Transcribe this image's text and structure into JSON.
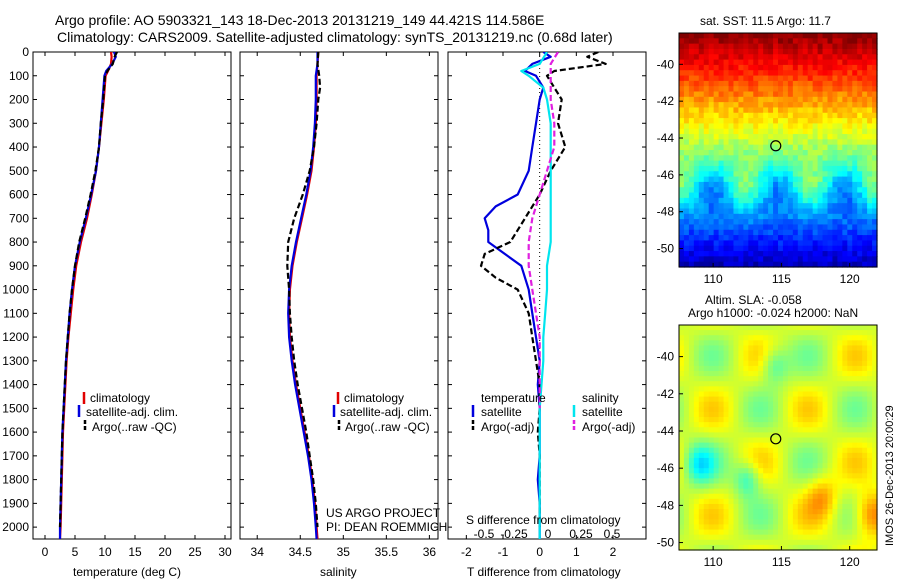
{
  "header": {
    "title_line1": "Argo profile: AO 5903321_143 18-Dec-2013 20131219_149 44.421S 114.586E",
    "title_line2": "Climatology: CARS2009. Satellite-adjusted climatology: synTS_20131219.nc (0.68d later)"
  },
  "credits": {
    "project": "US ARGO PROJECT",
    "pi": "PI: DEAN ROEMMICH",
    "stamp": "IMOS 26-Dec-2013 20:00:29"
  },
  "colors": {
    "climatology": "#e00000",
    "satellite": "#0000dd",
    "argo": "#000000",
    "sat_salinity": "#00e5ee",
    "argo_salinity_adj": "#e020e0"
  },
  "chart_data": [
    {
      "type": "line",
      "name": "temperature-profile",
      "xlabel": "temperature (deg C)",
      "xticks": [
        0,
        5,
        10,
        15,
        20,
        25,
        30
      ],
      "xlim": [
        -2,
        31
      ],
      "ylim": [
        0,
        2050
      ],
      "yticks": [
        0,
        100,
        200,
        300,
        400,
        500,
        600,
        700,
        800,
        900,
        1000,
        1100,
        1200,
        1300,
        1400,
        1500,
        1600,
        1700,
        1800,
        1900,
        2000
      ],
      "legend": [
        "climatology",
        "satellite-adj. clim.",
        "Argo(..raw -QC)"
      ],
      "series": [
        {
          "name": "climatology",
          "color": "#e00000",
          "dash": "",
          "depth": [
            0,
            20,
            50,
            80,
            100,
            200,
            300,
            400,
            500,
            600,
            700,
            800,
            900,
            1000,
            1100,
            1200,
            1300,
            1400,
            1500,
            1600,
            1700,
            1800,
            1900,
            2000,
            2050
          ],
          "values": [
            11.0,
            11.1,
            11.0,
            10.5,
            10.1,
            9.8,
            9.4,
            9.0,
            8.5,
            7.8,
            7.0,
            6.0,
            5.2,
            4.7,
            4.3,
            3.9,
            3.6,
            3.4,
            3.2,
            3.0,
            2.9,
            2.8,
            2.7,
            2.6,
            2.5
          ]
        },
        {
          "name": "satellite-adj. clim.",
          "color": "#0000dd",
          "dash": "",
          "depth": [
            0,
            20,
            50,
            80,
            100,
            200,
            300,
            400,
            500,
            600,
            700,
            800,
            900,
            1000,
            1100,
            1200,
            1300,
            1400,
            1500,
            1600,
            1700,
            1800,
            1900,
            2000,
            2050
          ],
          "values": [
            11.5,
            11.8,
            11.2,
            10.2,
            9.9,
            9.6,
            9.3,
            9.0,
            8.5,
            7.7,
            6.8,
            5.8,
            5.0,
            4.5,
            4.1,
            3.8,
            3.5,
            3.3,
            3.1,
            2.9,
            2.8,
            2.7,
            2.6,
            2.5,
            2.5
          ]
        },
        {
          "name": "Argo(..raw -QC)",
          "color": "#000000",
          "dash": "6,3",
          "depth": [
            0,
            20,
            50,
            80,
            100,
            200,
            300,
            400,
            500,
            600,
            700,
            800,
            900,
            1000,
            1100,
            1200,
            1300,
            1400,
            1500,
            1600,
            1700,
            1800,
            1900,
            2000
          ],
          "values": [
            12.0,
            11.6,
            11.3,
            10.4,
            10.0,
            9.7,
            9.3,
            9.0,
            8.4,
            7.6,
            6.7,
            5.7,
            5.0,
            4.5,
            4.1,
            3.8,
            3.5,
            3.3,
            3.1,
            2.9,
            2.8,
            2.7,
            2.6,
            2.5
          ]
        }
      ]
    },
    {
      "type": "line",
      "name": "salinity-profile",
      "xlabel": "salinity",
      "xticks": [
        34,
        34.5,
        35,
        35.5,
        36
      ],
      "xlim": [
        33.8,
        36.1
      ],
      "ylim": [
        0,
        2050
      ],
      "legend": [
        "climatology",
        "satellite-adj. clim.",
        "Argo(..raw -QC)"
      ],
      "series": [
        {
          "name": "climatology",
          "color": "#e00000",
          "dash": "",
          "depth": [
            0,
            50,
            100,
            200,
            300,
            400,
            500,
            600,
            700,
            800,
            900,
            1000,
            1100,
            1200,
            1300,
            1400,
            1500,
            1600,
            1700,
            1800,
            1900,
            2000,
            2050
          ],
          "values": [
            34.71,
            34.7,
            34.69,
            34.69,
            34.68,
            34.66,
            34.63,
            34.58,
            34.52,
            34.46,
            34.41,
            34.38,
            34.37,
            34.38,
            34.41,
            34.45,
            34.5,
            34.55,
            34.6,
            34.64,
            34.67,
            34.69,
            34.7
          ]
        },
        {
          "name": "satellite-adj. clim.",
          "color": "#0000dd",
          "dash": "",
          "depth": [
            0,
            50,
            100,
            200,
            300,
            400,
            500,
            600,
            700,
            800,
            900,
            1000,
            1100,
            1200,
            1300,
            1400,
            1500,
            1600,
            1700,
            1800,
            1900,
            2000,
            2050
          ],
          "values": [
            34.7,
            34.7,
            34.68,
            34.68,
            34.67,
            34.65,
            34.62,
            34.57,
            34.51,
            34.45,
            34.4,
            34.37,
            34.36,
            34.37,
            34.4,
            34.44,
            34.49,
            34.54,
            34.59,
            34.63,
            34.66,
            34.68,
            34.69
          ]
        },
        {
          "name": "Argo(..raw -QC)",
          "color": "#000000",
          "dash": "6,3",
          "depth": [
            0,
            50,
            100,
            150,
            200,
            300,
            400,
            500,
            600,
            700,
            800,
            900,
            1000,
            1100,
            1200,
            1300,
            1400,
            1500,
            1600,
            1700,
            1800,
            1900,
            2000
          ],
          "values": [
            34.71,
            34.7,
            34.72,
            34.73,
            34.71,
            34.69,
            34.66,
            34.61,
            34.53,
            34.43,
            34.36,
            34.35,
            34.37,
            34.38,
            34.4,
            34.43,
            34.47,
            34.52,
            34.57,
            34.61,
            34.65,
            34.68,
            34.7
          ]
        }
      ]
    },
    {
      "type": "line",
      "name": "difference-profile",
      "xlabel": "T difference from climatology",
      "xticks": [
        -2,
        -1,
        0,
        1,
        2
      ],
      "xlim": [
        -2.5,
        2.9
      ],
      "top_axis_label": "S difference from climatology",
      "top_ticks": [
        "-0.5",
        "-0.25",
        "0",
        "0.25",
        "0.5"
      ],
      "legend": {
        "temperature": "temperature",
        "salinity": "salinity",
        "t_sat": "satellite",
        "t_argo": "Argo(-adj)",
        "s_sat": "satellite",
        "s_argo": "Argo(-adj)"
      },
      "series": [
        {
          "name": "satellite",
          "color": "#0000dd",
          "dash": "",
          "depth": [
            0,
            20,
            50,
            80,
            100,
            150,
            200,
            300,
            400,
            500,
            600,
            650,
            700,
            750,
            800,
            900,
            1000,
            1100,
            1200,
            1300,
            1400,
            1500,
            1600,
            1700,
            1800,
            1900,
            2000,
            2050
          ],
          "values": [
            0.1,
            0.3,
            -0.2,
            -0.4,
            -0.1,
            0.1,
            0.0,
            -0.1,
            -0.2,
            -0.3,
            -0.6,
            -1.2,
            -1.5,
            -1.4,
            -1.4,
            -0.5,
            -0.3,
            -0.2,
            -0.1,
            0.0,
            -0.05,
            0.0,
            0.0,
            0.0,
            -0.05,
            0.0,
            0.0,
            0.0
          ]
        },
        {
          "name": "Argo(-adj)",
          "color": "#000000",
          "dash": "6,3",
          "depth": [
            0,
            20,
            50,
            80,
            100,
            150,
            200,
            300,
            400,
            500,
            600,
            700,
            800,
            850,
            900,
            950,
            1000,
            1100,
            1200,
            1300,
            1400,
            1500,
            1600,
            1700,
            1800,
            1900,
            2000
          ],
          "values": [
            1.6,
            1.3,
            1.8,
            0.4,
            0.2,
            0.4,
            0.6,
            0.5,
            0.7,
            0.3,
            0.0,
            -0.4,
            -0.8,
            -1.5,
            -1.6,
            -1.2,
            -0.6,
            -0.3,
            -0.2,
            -0.1,
            0.0,
            0.0,
            -0.05,
            0.0,
            0.0,
            0.0,
            0.0
          ]
        },
        {
          "name": "satellite",
          "color": "#00e5ee",
          "dash": "",
          "depth": [
            0,
            50,
            80,
            100,
            150,
            200,
            300,
            400,
            500,
            600,
            700,
            800,
            900,
            1000,
            1100,
            1200,
            1300,
            1400,
            1500,
            1600,
            1700,
            1800,
            1900,
            2000,
            2050
          ],
          "values": [
            0.2,
            0.0,
            -0.5,
            -0.3,
            0.1,
            0.2,
            0.3,
            0.3,
            0.3,
            0.3,
            0.3,
            0.3,
            0.2,
            0.2,
            0.15,
            0.1,
            0.1,
            0.05,
            0.0,
            0.0,
            0.0,
            0.0,
            0.0,
            0.0,
            0.0
          ]
        },
        {
          "name": "Argo(-adj)",
          "color": "#e020e0",
          "dash": "6,3",
          "depth": [
            0,
            50,
            100,
            200,
            300,
            400,
            500,
            600,
            700,
            800,
            900,
            1000,
            1100,
            1200,
            1300,
            1400,
            1500
          ],
          "values": [
            0.5,
            0.3,
            0.3,
            0.3,
            0.4,
            0.4,
            0.2,
            0.0,
            -0.2,
            -0.3,
            -0.3,
            -0.2,
            -0.1,
            0.0,
            0.0,
            0.0,
            0.0
          ]
        }
      ]
    },
    {
      "type": "heatmap",
      "name": "sst-map",
      "title": "sat. SST: 11.5 Argo: 11.7",
      "xticks": [
        110,
        115,
        120
      ],
      "yticks": [
        -40,
        -42,
        -44,
        -46,
        -48,
        -50
      ],
      "xlim": [
        107.5,
        122
      ],
      "ylim": [
        -51,
        -38.3
      ],
      "marker": {
        "lon": 114.586,
        "lat": -44.421
      }
    },
    {
      "type": "heatmap",
      "name": "sla-map",
      "title_line1": "Altim. SLA: -0.058",
      "title_line2": "Argo h1000: -0.024 h2000: NaN",
      "xticks": [
        110,
        115,
        120
      ],
      "yticks": [
        -40,
        -42,
        -44,
        -46,
        -48,
        -50
      ],
      "xlim": [
        107.5,
        122
      ],
      "ylim": [
        -50.4,
        -38.3
      ],
      "marker": {
        "lon": 114.586,
        "lat": -44.421
      }
    }
  ]
}
